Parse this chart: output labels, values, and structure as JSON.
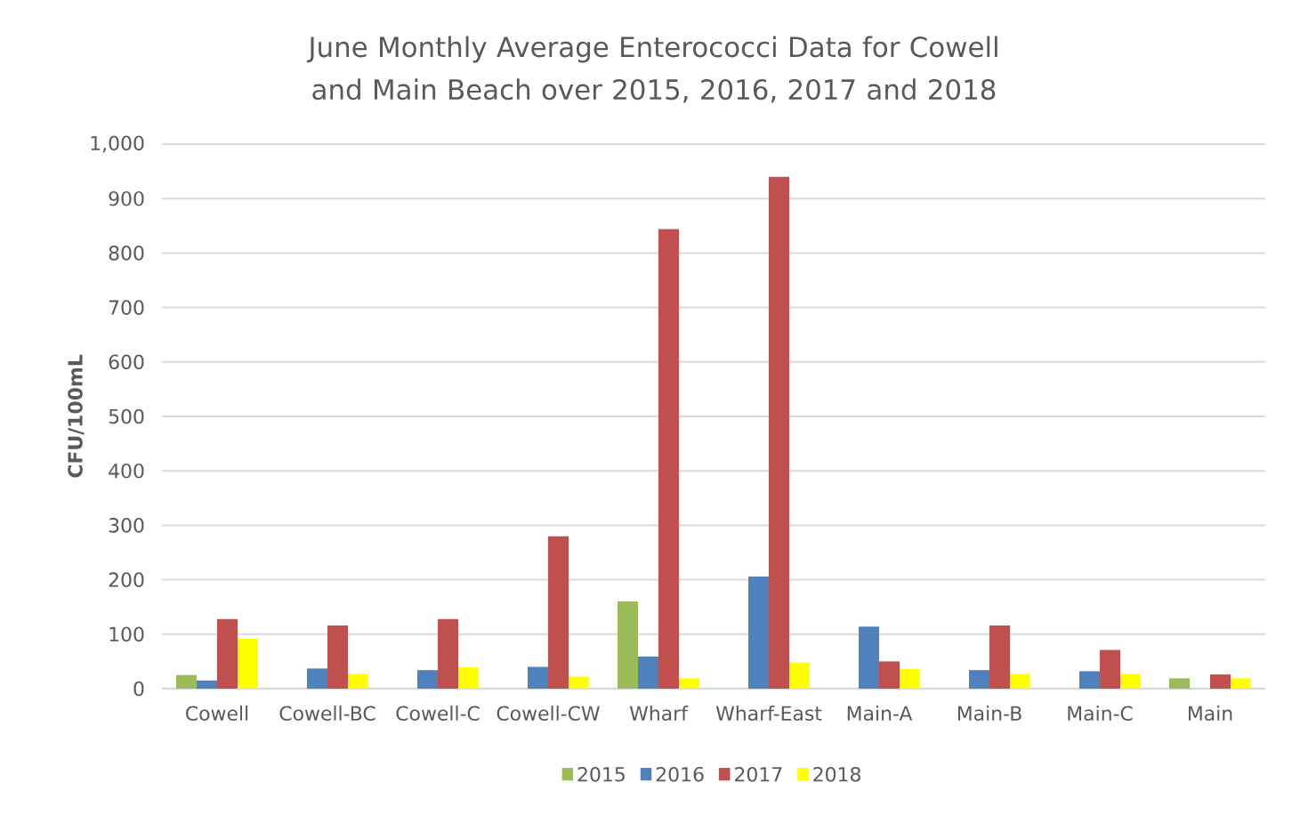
{
  "chart_data": {
    "type": "bar",
    "title": "June Monthly Average Enterococci Data for Cowell and Main Beach over 2015, 2016, 2017 and 2018",
    "ylabel": "CFU/100mL",
    "categories": [
      "Cowell",
      "Cowell-BC",
      "Cowell-C",
      "Cowell-CW",
      "Wharf",
      "Wharf-East",
      "Main-A",
      "Main-B",
      "Main-C",
      "Main"
    ],
    "series": [
      {
        "name": "2015",
        "color": "#9bbb59",
        "values": [
          25,
          null,
          null,
          null,
          160,
          null,
          null,
          null,
          null,
          19
        ]
      },
      {
        "name": "2016",
        "color": "#4f81bd",
        "values": [
          15,
          37,
          34,
          40,
          59,
          206,
          114,
          34,
          32,
          null
        ]
      },
      {
        "name": "2017",
        "color": "#c0504d",
        "values": [
          128,
          116,
          128,
          280,
          844,
          940,
          50,
          116,
          71,
          26
        ]
      },
      {
        "name": "2018",
        "color": "#ffff00",
        "values": [
          92,
          27,
          39,
          22,
          19,
          48,
          36,
          27,
          27,
          19
        ]
      }
    ],
    "ylim": [
      0,
      1000
    ],
    "yticks": [
      0,
      100,
      200,
      300,
      400,
      500,
      600,
      700,
      800,
      900,
      {
        "value": 1000,
        "label": "1,000"
      }
    ],
    "grid": "y",
    "legend": "bottom"
  }
}
